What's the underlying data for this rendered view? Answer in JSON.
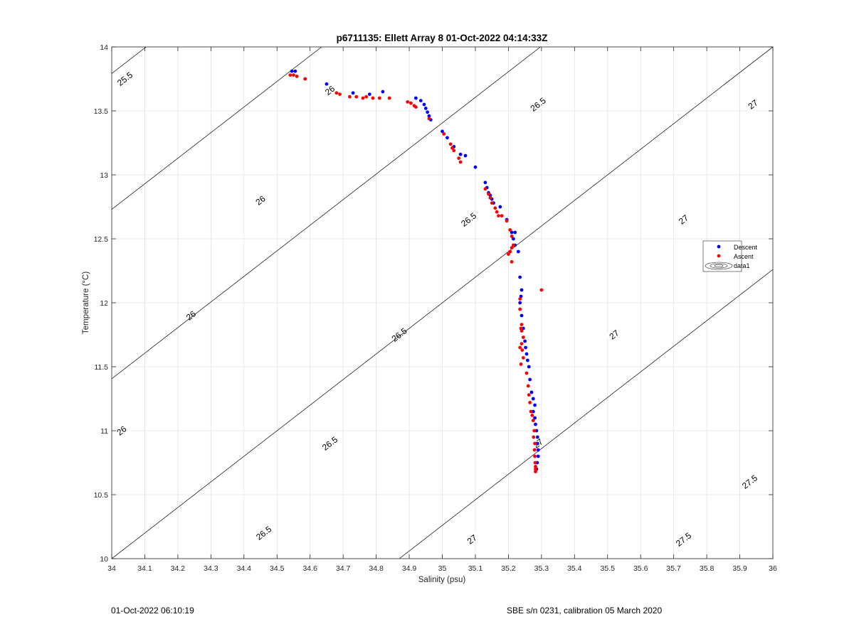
{
  "chart_data": {
    "type": "scatter",
    "title": "p6711135: Ellett Array 8 01-Oct-2022 04:14:33Z",
    "xlabel": "Salinity (psu)",
    "ylabel": "Temperature (°C)",
    "xlim": [
      34,
      36
    ],
    "ylim": [
      10,
      14
    ],
    "grid": true,
    "legend_placement": "right",
    "x_ticks": [
      "34",
      "34.1",
      "34.2",
      "34.3",
      "34.4",
      "34.5",
      "34.6",
      "34.7",
      "34.8",
      "34.9",
      "35",
      "35.1",
      "35.2",
      "35.3",
      "35.4",
      "35.5",
      "35.6",
      "35.7",
      "35.8",
      "35.9",
      "36"
    ],
    "y_ticks": [
      "10",
      "10.5",
      "11",
      "11.5",
      "12",
      "12.5",
      "13",
      "13.5",
      "14"
    ],
    "series": [
      {
        "name": "Descent",
        "color": "#0000ff",
        "points": [
          [
            34.545,
            13.81
          ],
          [
            34.555,
            13.81
          ],
          [
            34.65,
            13.71
          ],
          [
            34.73,
            13.64
          ],
          [
            34.78,
            13.63
          ],
          [
            34.82,
            13.65
          ],
          [
            34.92,
            13.6
          ],
          [
            34.935,
            13.58
          ],
          [
            34.945,
            13.55
          ],
          [
            34.95,
            13.52
          ],
          [
            34.955,
            13.49
          ],
          [
            34.96,
            13.46
          ],
          [
            34.965,
            13.43
          ],
          [
            35.0,
            13.34
          ],
          [
            35.015,
            13.29
          ],
          [
            35.035,
            13.22
          ],
          [
            35.055,
            13.16
          ],
          [
            35.07,
            13.15
          ],
          [
            35.1,
            13.06
          ],
          [
            35.13,
            12.94
          ],
          [
            35.135,
            12.9
          ],
          [
            35.14,
            12.86
          ],
          [
            35.145,
            12.84
          ],
          [
            35.15,
            12.81
          ],
          [
            35.155,
            12.78
          ],
          [
            35.175,
            12.75
          ],
          [
            35.195,
            12.65
          ],
          [
            35.21,
            12.55
          ],
          [
            35.22,
            12.55
          ],
          [
            35.215,
            12.5
          ],
          [
            35.22,
            12.45
          ],
          [
            35.23,
            12.4
          ],
          [
            35.235,
            12.2
          ],
          [
            35.24,
            12.1
          ],
          [
            35.238,
            12.05
          ],
          [
            35.235,
            12.0
          ],
          [
            35.24,
            11.9
          ],
          [
            35.245,
            11.8
          ],
          [
            35.25,
            11.7
          ],
          [
            35.252,
            11.65
          ],
          [
            35.255,
            11.6
          ],
          [
            35.258,
            11.55
          ],
          [
            35.262,
            11.5
          ],
          [
            35.265,
            11.4
          ],
          [
            35.27,
            11.3
          ],
          [
            35.275,
            11.25
          ],
          [
            35.28,
            11.2
          ],
          [
            35.275,
            11.15
          ],
          [
            35.28,
            11.1
          ],
          [
            35.282,
            11.05
          ],
          [
            35.285,
            11.0
          ],
          [
            35.288,
            10.95
          ],
          [
            35.288,
            10.9
          ],
          [
            35.29,
            10.85
          ],
          [
            35.29,
            10.8
          ],
          [
            35.287,
            10.75
          ],
          [
            35.285,
            10.7
          ]
        ]
      },
      {
        "name": "Ascent",
        "color": "#ff0000",
        "points": [
          [
            34.54,
            13.78
          ],
          [
            34.55,
            13.78
          ],
          [
            34.56,
            13.77
          ],
          [
            34.585,
            13.75
          ],
          [
            34.68,
            13.64
          ],
          [
            34.69,
            13.63
          ],
          [
            34.72,
            13.61
          ],
          [
            34.74,
            13.61
          ],
          [
            34.76,
            13.6
          ],
          [
            34.77,
            13.61
          ],
          [
            34.79,
            13.6
          ],
          [
            34.81,
            13.6
          ],
          [
            34.84,
            13.6
          ],
          [
            34.895,
            13.57
          ],
          [
            34.905,
            13.56
          ],
          [
            34.915,
            13.54
          ],
          [
            34.92,
            13.53
          ],
          [
            34.96,
            13.44
          ],
          [
            35.005,
            13.32
          ],
          [
            35.025,
            13.24
          ],
          [
            35.03,
            13.21
          ],
          [
            35.035,
            13.19
          ],
          [
            35.05,
            13.13
          ],
          [
            35.055,
            13.1
          ],
          [
            35.13,
            12.89
          ],
          [
            35.14,
            12.85
          ],
          [
            35.145,
            12.82
          ],
          [
            35.15,
            12.78
          ],
          [
            35.16,
            12.74
          ],
          [
            35.165,
            12.71
          ],
          [
            35.17,
            12.68
          ],
          [
            35.18,
            12.68
          ],
          [
            35.195,
            12.64
          ],
          [
            35.205,
            12.57
          ],
          [
            35.21,
            12.52
          ],
          [
            35.215,
            12.45
          ],
          [
            35.21,
            12.43
          ],
          [
            35.205,
            12.4
          ],
          [
            35.2,
            12.38
          ],
          [
            35.21,
            12.32
          ],
          [
            35.3,
            12.1
          ],
          [
            35.235,
            12.03
          ],
          [
            35.235,
            11.95
          ],
          [
            35.24,
            11.83
          ],
          [
            35.238,
            11.8
          ],
          [
            35.24,
            11.78
          ],
          [
            35.245,
            11.73
          ],
          [
            35.24,
            11.68
          ],
          [
            35.235,
            11.65
          ],
          [
            35.242,
            11.63
          ],
          [
            35.245,
            11.57
          ],
          [
            35.238,
            11.52
          ],
          [
            35.255,
            11.45
          ],
          [
            35.26,
            11.35
          ],
          [
            35.262,
            11.28
          ],
          [
            35.265,
            11.22
          ],
          [
            35.268,
            11.15
          ],
          [
            35.272,
            11.12
          ],
          [
            35.275,
            11.08
          ],
          [
            35.278,
            11.0
          ],
          [
            35.276,
            10.95
          ],
          [
            35.28,
            10.9
          ],
          [
            35.279,
            10.85
          ],
          [
            35.28,
            10.8
          ],
          [
            35.281,
            10.75
          ],
          [
            35.282,
            10.72
          ],
          [
            35.282,
            10.7
          ],
          [
            35.282,
            10.68
          ]
        ]
      }
    ],
    "density_contours": [
      {
        "level": "25.5",
        "x0_at_14": 34.104,
        "labels": [
          [
            34.04,
            13.75
          ]
        ]
      },
      {
        "level": "26",
        "x0_at_14": 34.635,
        "labels": [
          [
            34.66,
            13.66
          ],
          [
            34.45,
            12.8
          ],
          [
            34.24,
            11.9
          ],
          [
            34.03,
            11.0
          ]
        ]
      },
      {
        "level": "26.5",
        "x0_at_14": 35.297,
        "labels": [
          [
            35.29,
            13.55
          ],
          [
            35.08,
            12.65
          ],
          [
            34.87,
            11.75
          ],
          [
            34.66,
            10.9
          ],
          [
            34.46,
            10.2
          ]
        ]
      },
      {
        "level": "27",
        "x0_at_14": 36.0,
        "labels": [
          [
            35.94,
            13.55
          ],
          [
            35.73,
            12.65
          ],
          [
            35.52,
            11.75
          ],
          [
            35.29,
            10.9
          ],
          [
            35.09,
            10.15
          ]
        ]
      },
      {
        "level": "27.5",
        "x0_at_14": 36.87,
        "labels": [
          [
            35.93,
            10.6
          ],
          [
            35.73,
            10.15
          ]
        ]
      }
    ],
    "legend_entries": [
      "Descent",
      "Ascent",
      "data1"
    ]
  },
  "footer": {
    "left": "01-Oct-2022 06:10:19",
    "right": "SBE s/n 0231, calibration 05 March 2020"
  }
}
